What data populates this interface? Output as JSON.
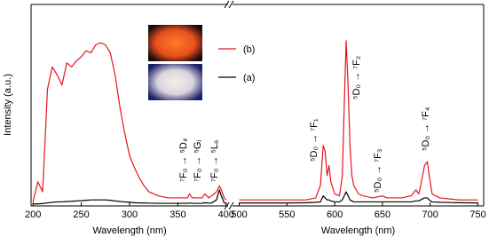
{
  "chart_data": [
    {
      "type": "line",
      "ylabel": "Intensity (a.u.)",
      "xlabel": "Wavelength (nm)",
      "xlim": [
        198,
        402
      ],
      "xticks": [
        200,
        250,
        300,
        350,
        400
      ],
      "ylim": [
        0,
        100
      ],
      "x": [
        200,
        205,
        210,
        215,
        220,
        225,
        230,
        235,
        240,
        245,
        250,
        255,
        260,
        265,
        270,
        275,
        280,
        285,
        290,
        295,
        300,
        305,
        310,
        315,
        320,
        330,
        340,
        350,
        360,
        362,
        365,
        375,
        378,
        382,
        385,
        390,
        393,
        395,
        398,
        400
      ],
      "series": [
        {
          "name": "(b)",
          "color": "#e8141b",
          "values": [
            2,
            12,
            7,
            58,
            69,
            65,
            60,
            71,
            69,
            72,
            74,
            77,
            76,
            80,
            81,
            80,
            76,
            65,
            49,
            36,
            25,
            19,
            14,
            10,
            7,
            5,
            4,
            4,
            4,
            6,
            4,
            4,
            6,
            4,
            5,
            7,
            10,
            8,
            4,
            3
          ]
        },
        {
          "name": "(a)",
          "color": "#000000",
          "values": [
            1,
            1,
            1.2,
            1.5,
            1.8,
            2,
            2,
            2.2,
            2.3,
            2.5,
            2.6,
            2.8,
            3,
            3,
            3,
            3,
            2.8,
            2.5,
            2.2,
            2,
            1.8,
            1.6,
            1.5,
            1.5,
            1.4,
            1.3,
            1.3,
            1.3,
            1.3,
            1.5,
            1.3,
            1.3,
            1.6,
            1.4,
            1.5,
            3,
            8,
            5,
            1.5,
            1.2
          ]
        }
      ],
      "annotations": [
        "⁷F₀ → ⁵D₄",
        "⁷F₀ → ⁵Gⱼ",
        "⁷F₀ → ⁵L₆"
      ]
    },
    {
      "type": "line",
      "xlabel": "Wavelength (nm)",
      "xlim": [
        493,
        756
      ],
      "xticks": [
        500,
        550,
        600,
        650,
        700,
        750
      ],
      "ylim": [
        0,
        100
      ],
      "x": [
        500,
        550,
        570,
        580,
        585,
        588,
        590,
        592,
        594,
        596,
        600,
        605,
        608,
        610,
        612,
        614,
        616,
        618,
        620,
        625,
        630,
        640,
        650,
        655,
        670,
        680,
        685,
        688,
        690,
        694,
        697,
        699,
        702,
        710,
        730,
        750
      ],
      "series": [
        {
          "color": "#e8141b",
          "values": [
            3,
            3,
            3,
            4,
            10,
            30,
            27,
            15,
            20,
            12,
            6,
            5,
            15,
            50,
            82,
            60,
            30,
            15,
            10,
            6,
            5,
            4,
            5,
            4,
            4,
            5,
            8,
            6,
            10,
            20,
            22,
            15,
            6,
            4,
            3,
            3
          ]
        },
        {
          "color": "#000000",
          "values": [
            1.5,
            1.5,
            1.6,
            1.8,
            2,
            5,
            4,
            3,
            3,
            2.5,
            2,
            2,
            3,
            5,
            7,
            5,
            3,
            2.5,
            2,
            2,
            2,
            2,
            2,
            2,
            2,
            2,
            2.5,
            2.5,
            3,
            4,
            4,
            3,
            2,
            1.8,
            1.6,
            1.5
          ]
        }
      ],
      "annotations": [
        "⁵D₀ → ⁷F₁",
        "⁵D₀ → ⁷F₂",
        "⁵D₀ → ⁷F₃",
        "⁵D₀ → ⁷F₄"
      ]
    }
  ]
}
